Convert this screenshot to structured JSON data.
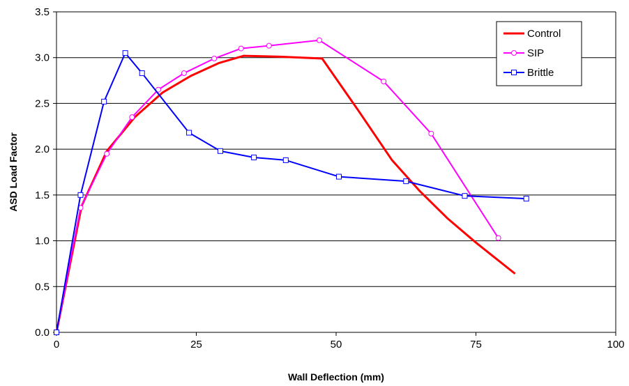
{
  "chart_data": {
    "type": "line",
    "title": "",
    "xlabel": "Wall Deflection (mm)",
    "ylabel": "ASD Load Factor",
    "xlim": [
      0,
      100
    ],
    "ylim": [
      0,
      3.5
    ],
    "x_ticks": [
      0,
      25,
      50,
      75,
      100
    ],
    "y_ticks": [
      0.0,
      0.5,
      1.0,
      1.5,
      2.0,
      2.5,
      3.0,
      3.5
    ],
    "x_tick_labels": [
      "0",
      "25",
      "50",
      "75",
      "100"
    ],
    "y_tick_labels": [
      "0.0",
      "0.5",
      "1.0",
      "1.5",
      "2.0",
      "2.5",
      "3.0",
      "3.5"
    ],
    "grid": "horizontal",
    "legend_position": "top-right",
    "series": [
      {
        "name": "Control",
        "color": "#ff0000",
        "marker": "none",
        "x": [
          0,
          4.5,
          9,
          14,
          19,
          24,
          29,
          33.5,
          40,
          47.5,
          54,
          60,
          65,
          70,
          75,
          82
        ],
        "y": [
          0,
          1.38,
          1.98,
          2.35,
          2.62,
          2.8,
          2.94,
          3.02,
          3.01,
          2.99,
          2.42,
          1.88,
          1.54,
          1.24,
          0.98,
          0.64
        ]
      },
      {
        "name": "SIP",
        "color": "#ff00ff",
        "marker": "circle",
        "x": [
          0,
          4.3,
          9,
          13.5,
          18.2,
          22.8,
          28.2,
          33,
          38,
          47,
          58.5,
          67,
          79
        ],
        "y": [
          0,
          1.36,
          1.95,
          2.35,
          2.65,
          2.83,
          2.99,
          3.1,
          3.13,
          3.19,
          2.74,
          2.17,
          1.03
        ]
      },
      {
        "name": "Brittle",
        "color": "#0000ff",
        "marker": "square",
        "x": [
          0,
          4.3,
          8.5,
          12.3,
          15.3,
          23.7,
          29.3,
          35.3,
          41,
          50.5,
          62.5,
          73,
          84
        ],
        "y": [
          0,
          1.5,
          2.52,
          3.05,
          2.83,
          2.18,
          1.98,
          1.91,
          1.88,
          1.7,
          1.65,
          1.49,
          1.46
        ]
      }
    ]
  }
}
